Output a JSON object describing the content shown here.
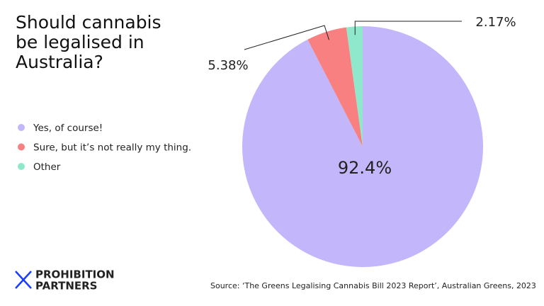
{
  "chart_data": {
    "type": "pie",
    "title": "Should cannabis be legalised in Australia?",
    "categories": [
      "Yes, of course!",
      "Sure, but it’s not really my thing.",
      "Other"
    ],
    "values": [
      92.4,
      5.38,
      2.17
    ],
    "value_labels": [
      "92.4%",
      "5.38%",
      "2.17%"
    ],
    "colors": [
      "#c3b6fb",
      "#f98080",
      "#8fe8cc"
    ],
    "legend": "left",
    "source": "Source: ‘The Greens Legalising Cannabis Bill 2023 Report’, Australian Greens, 2023"
  },
  "logo": {
    "lines": [
      "PROHIBITION",
      "PARTNERS"
    ]
  }
}
